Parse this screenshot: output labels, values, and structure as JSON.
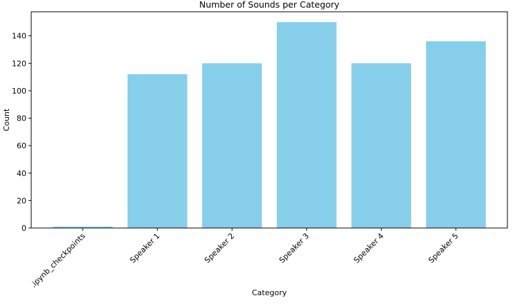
{
  "chart_data": {
    "type": "bar",
    "title": "Number of Sounds per Category",
    "xlabel": "Category",
    "ylabel": "Count",
    "categories": [
      ".ipynb_checkpoints",
      "Speaker 1",
      "Speaker 2",
      "Speaker 3",
      "Speaker 4",
      "Speaker 5"
    ],
    "values": [
      1,
      112,
      120,
      150,
      120,
      136
    ],
    "ylim": [
      0,
      157.5
    ],
    "yticks": [
      0,
      20,
      40,
      60,
      80,
      100,
      120,
      140
    ],
    "bar_color": "#87ceeb",
    "grid": false,
    "legend": "none",
    "x_tick_rotation": "45 degrees"
  }
}
